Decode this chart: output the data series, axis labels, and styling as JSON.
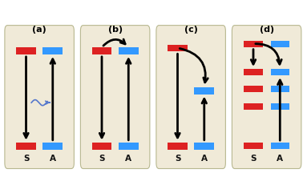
{
  "bg_color": "#f0ead8",
  "border_color": "#b8b890",
  "red_color": "#dd2222",
  "blue_color": "#3399ff",
  "black_color": "#111111",
  "wavy_color": "#5577cc",
  "panel_labels": [
    "(a)",
    "(b)",
    "(c)",
    "(d)"
  ],
  "s_label": "S",
  "a_label": "A",
  "panel_label_fontsize": 8,
  "sa_label_fontsize": 7.5,
  "figsize": [
    3.78,
    2.16
  ],
  "dpi": 100
}
